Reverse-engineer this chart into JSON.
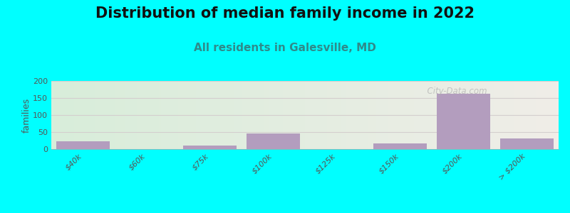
{
  "title": "Distribution of median family income in 2022",
  "subtitle": "All residents in Galesville, MD",
  "categories": [
    "$40k",
    "$60k",
    "$75k",
    "$100k",
    "$125k",
    "$150k",
    "$200k",
    "> $200k"
  ],
  "bar_values": [
    23,
    0,
    11,
    46,
    0,
    17,
    163,
    31
  ],
  "bar_color": "#b39dbe",
  "background_color": "#00ffff",
  "grad_left": "#d8eeda",
  "grad_right": "#f0ede8",
  "ylabel": "families",
  "ylim": [
    0,
    200
  ],
  "yticks": [
    0,
    50,
    100,
    150,
    200
  ],
  "grid_color": "#d4cece",
  "title_fontsize": 15,
  "subtitle_fontsize": 11,
  "subtitle_color": "#2e8b8b",
  "tick_fontsize": 8,
  "watermark": "  City-Data.com"
}
